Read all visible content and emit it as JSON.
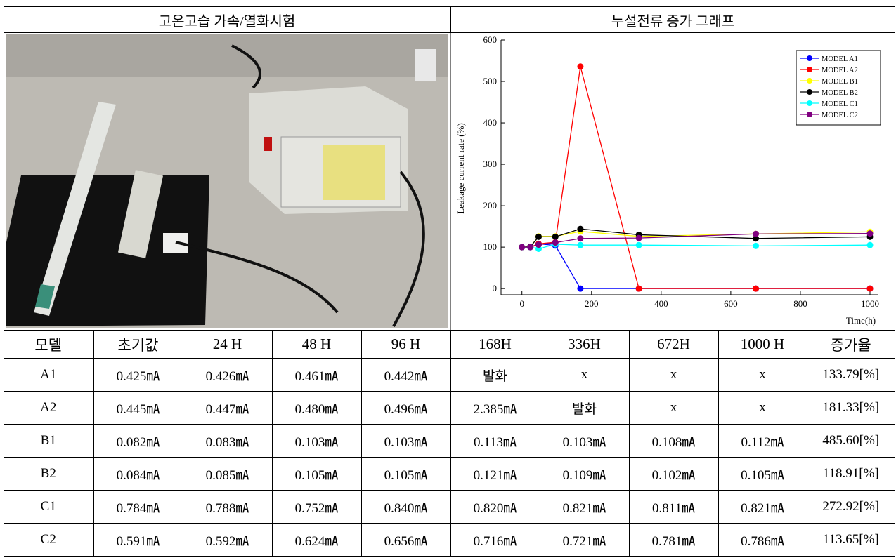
{
  "header": {
    "left_title": "고온고습 가속/열화시험",
    "right_title": "누설전류 증가 그래프"
  },
  "chart_data": {
    "type": "line",
    "x": [
      0,
      24,
      48,
      96,
      168,
      336,
      672,
      1000
    ],
    "series": [
      {
        "name": "MODEL A1",
        "color": "#0000ff",
        "values": [
          100,
          100,
          108,
          104,
          0,
          0,
          0,
          0
        ]
      },
      {
        "name": "MODEL A2",
        "color": "#ff0000",
        "values": [
          100,
          100,
          108,
          112,
          536,
          0,
          0,
          0
        ]
      },
      {
        "name": "MODEL B1",
        "color": "#ffff00",
        "values": [
          100,
          101,
          126,
          126,
          138,
          126,
          132,
          137
        ]
      },
      {
        "name": "MODEL B2",
        "color": "#000000",
        "values": [
          100,
          101,
          125,
          125,
          144,
          130,
          121,
          125
        ]
      },
      {
        "name": "MODEL C1",
        "color": "#00ffff",
        "values": [
          100,
          100,
          96,
          107,
          105,
          105,
          103,
          105
        ]
      },
      {
        "name": "MODEL C2",
        "color": "#800080",
        "values": [
          100,
          100,
          106,
          111,
          121,
          122,
          132,
          133
        ]
      }
    ],
    "xlim": [
      -60,
      1000
    ],
    "xticks": [
      0,
      200,
      400,
      600,
      800,
      1000
    ],
    "ylim": [
      -15,
      600
    ],
    "yticks": [
      0,
      100,
      200,
      300,
      400,
      500,
      600
    ],
    "xlabel": "Time(h)",
    "ylabel": "Leakage current rate (%)",
    "legend": "upper right"
  },
  "table": {
    "header": [
      "모델",
      "초기값",
      "24 H",
      "48 H",
      "96 H",
      "168H",
      "336H",
      "672H",
      "1000 H",
      "증가율"
    ],
    "rows": [
      [
        "A1",
        "0.425㎃",
        "0.426㎃",
        "0.461㎃",
        "0.442㎃",
        "발화",
        "x",
        "x",
        "x",
        "133.79[%]"
      ],
      [
        "A2",
        "0.445㎃",
        "0.447㎃",
        "0.480㎃",
        "0.496㎃",
        "2.385㎃",
        "발화",
        "x",
        "x",
        "181.33[%]"
      ],
      [
        "B1",
        "0.082㎃",
        "0.083㎃",
        "0.103㎃",
        "0.103㎃",
        "0.113㎃",
        "0.103㎃",
        "0.108㎃",
        "0.112㎃",
        "485.60[%]"
      ],
      [
        "B2",
        "0.084㎃",
        "0.085㎃",
        "0.105㎃",
        "0.105㎃",
        "0.121㎃",
        "0.109㎃",
        "0.102㎃",
        "0.105㎃",
        "118.91[%]"
      ],
      [
        "C1",
        "0.784㎃",
        "0.788㎃",
        "0.752㎃",
        "0.840㎃",
        "0.820㎃",
        "0.821㎃",
        "0.811㎃",
        "0.821㎃",
        "272.92[%]"
      ],
      [
        "C2",
        "0.591㎃",
        "0.592㎃",
        "0.624㎃",
        "0.656㎃",
        "0.716㎃",
        "0.721㎃",
        "0.781㎃",
        "0.786㎃",
        "113.65[%]"
      ]
    ]
  }
}
